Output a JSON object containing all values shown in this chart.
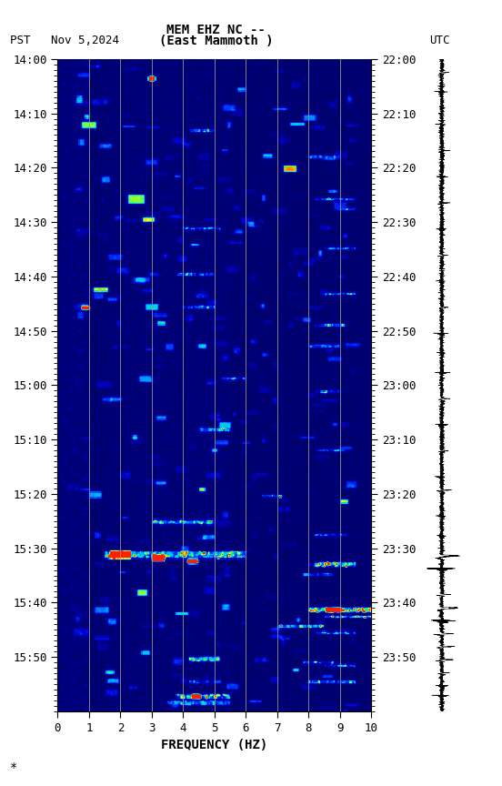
{
  "title_line1": "MEM EHZ NC --",
  "title_line2": "(East Mammoth )",
  "left_label": "PST   Nov 5,2024",
  "right_label": "UTC",
  "xlabel": "FREQUENCY (HZ)",
  "freq_min": 0,
  "freq_max": 10,
  "freq_ticks": [
    0,
    1,
    2,
    3,
    4,
    5,
    6,
    7,
    8,
    9,
    10
  ],
  "pst_ticks": [
    "14:00",
    "14:10",
    "14:20",
    "14:30",
    "14:40",
    "14:50",
    "15:00",
    "15:10",
    "15:20",
    "15:30",
    "15:40",
    "15:50"
  ],
  "utc_ticks": [
    "22:00",
    "22:10",
    "22:20",
    "22:30",
    "22:40",
    "22:50",
    "23:00",
    "23:10",
    "23:20",
    "23:30",
    "23:40",
    "23:50"
  ],
  "background_color": "#ffffff",
  "vertical_line_color": "#a0a080",
  "seed": 12345
}
